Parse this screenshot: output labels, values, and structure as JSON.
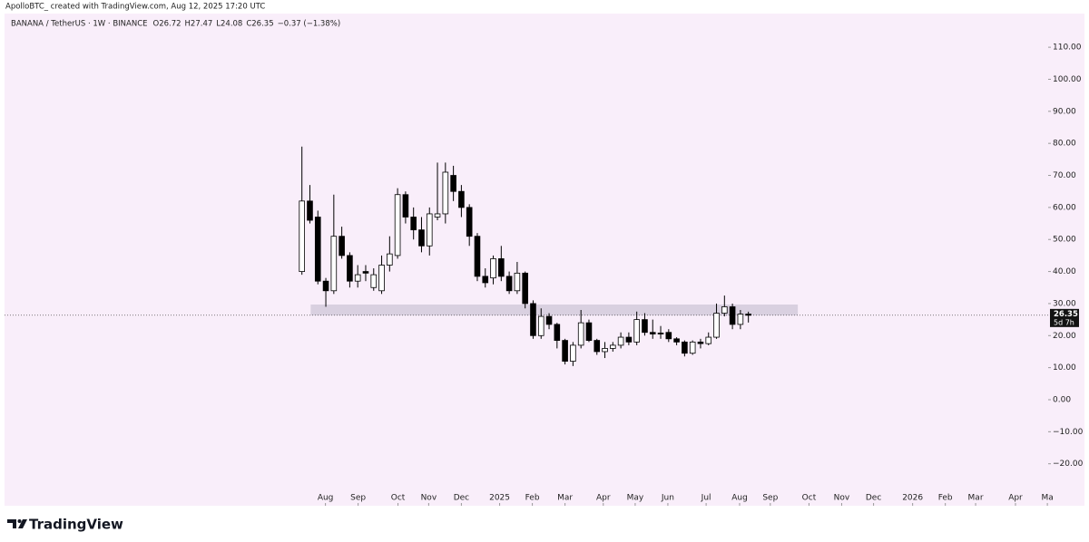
{
  "chart_data": {
    "type": "candlestick",
    "credit": "ApolloBTC_ created with TradingView.com, Aug 12, 2025 17:20 UTC",
    "symbol": "BANANA / TetherUS · 1W · BINANCE",
    "ohlc_header": [
      "O26.72",
      "H27.47",
      "L24.08",
      "C26.35",
      "−0.37 (−1.38%)"
    ],
    "open": [
      40,
      62,
      57,
      37,
      34,
      51,
      45,
      37,
      40,
      35,
      34,
      42,
      45,
      64,
      57,
      53,
      48,
      57,
      58,
      70,
      65,
      60,
      51,
      38.5,
      38,
      44,
      38.5,
      34,
      39.5,
      30,
      20,
      26,
      23.5,
      18.5,
      12,
      17,
      24,
      18.5,
      15,
      16,
      17,
      19.5,
      18,
      25,
      21,
      20.8,
      21,
      19,
      18,
      14.5,
      18,
      17.5,
      19.5,
      27,
      29,
      23.5,
      26.72
    ],
    "high": [
      79,
      67,
      59,
      38,
      64,
      54,
      46,
      42,
      42,
      41,
      45,
      51,
      66,
      65,
      60,
      57,
      60,
      74,
      74,
      73,
      67,
      61,
      52,
      41,
      45,
      48,
      40,
      43,
      40,
      31,
      28.5,
      27,
      24,
      19,
      18,
      28,
      25,
      19,
      18,
      18,
      21,
      21,
      27.5,
      27,
      25,
      23,
      22,
      19.5,
      18.5,
      18.5,
      19,
      21,
      30,
      32.5,
      30,
      28,
      27.47
    ],
    "low": [
      39,
      55,
      36,
      29,
      33,
      44,
      35,
      35,
      37,
      34,
      33,
      40,
      44,
      55,
      50,
      46,
      45,
      56,
      55,
      62,
      57,
      48,
      37,
      35,
      36,
      37,
      33,
      33,
      28.5,
      19,
      19,
      22,
      16,
      11,
      10.5,
      16,
      18,
      14,
      13,
      15,
      16,
      17,
      17,
      20,
      19,
      19,
      18,
      17,
      13.5,
      14,
      16,
      17,
      19,
      26,
      22,
      22,
      24.08
    ],
    "close": [
      62,
      56,
      37,
      34,
      51,
      45,
      37,
      39,
      39.5,
      39,
      42,
      45.5,
      64,
      57,
      53,
      48,
      58,
      58,
      71,
      65,
      60,
      51,
      38.5,
      36.5,
      44,
      38.5,
      34,
      39.5,
      30,
      20,
      26,
      23.5,
      18.5,
      12,
      17,
      24,
      18.5,
      15,
      16,
      17,
      19.5,
      18,
      25,
      21,
      20.5,
      20.5,
      19,
      18,
      14.5,
      18,
      17.5,
      19.5,
      27,
      29,
      23.5,
      26.7,
      26.35
    ],
    "up_color": "#ffffff",
    "down_color": "#000000",
    "border_color": "#000000",
    "ylim": [
      -33.1,
      120.5
    ],
    "yticks": [
      {
        "value": -20,
        "label": "−20.00"
      },
      {
        "value": -10,
        "label": "−10.00"
      },
      {
        "value": 0,
        "label": "0.00"
      },
      {
        "value": 10,
        "label": "10.00"
      },
      {
        "value": 20,
        "label": "20.00"
      },
      {
        "value": 30,
        "label": "30.00"
      },
      {
        "value": 40,
        "label": "40.00"
      },
      {
        "value": 50,
        "label": "50.00"
      },
      {
        "value": 60,
        "label": "60.00"
      },
      {
        "value": 70,
        "label": "70.00"
      },
      {
        "value": 80,
        "label": "80.00"
      },
      {
        "value": 90,
        "label": "90.00"
      },
      {
        "value": 100,
        "label": "100.00"
      },
      {
        "value": 110,
        "label": "110.00"
      }
    ],
    "xlim": [
      -37.3,
      93.6
    ],
    "xticks": [
      {
        "value": 2.95,
        "label": "Aug"
      },
      {
        "value": 7.05,
        "label": "Sep"
      },
      {
        "value": 12.05,
        "label": "Oct"
      },
      {
        "value": 15.9,
        "label": "Nov"
      },
      {
        "value": 20,
        "label": "Dec"
      },
      {
        "value": 24.8,
        "label": "2025"
      },
      {
        "value": 28.9,
        "label": "Feb"
      },
      {
        "value": 33,
        "label": "Mar"
      },
      {
        "value": 37.8,
        "label": "Apr"
      },
      {
        "value": 41.8,
        "label": "May"
      },
      {
        "value": 45.9,
        "label": "Jun"
      },
      {
        "value": 50.7,
        "label": "Jul"
      },
      {
        "value": 54.9,
        "label": "Aug"
      },
      {
        "value": 58.75,
        "label": "Sep"
      },
      {
        "value": 63.6,
        "label": "Oct"
      },
      {
        "value": 67.7,
        "label": "Nov"
      },
      {
        "value": 71.7,
        "label": "Dec"
      },
      {
        "value": 76.6,
        "label": "2026"
      },
      {
        "value": 80.7,
        "label": "Feb"
      },
      {
        "value": 84.5,
        "label": "Mar"
      },
      {
        "value": 89.5,
        "label": "Apr"
      },
      {
        "value": 93.5,
        "label": "Ma"
      }
    ],
    "zone": {
      "x": [
        1.1,
        62.2
      ],
      "y": [
        26.3,
        29.7
      ],
      "color": "#d9d0e0"
    },
    "last_price": 26.35,
    "countdown": "5d 7h",
    "background": "#f9eefa",
    "footer_logo": "TradingView"
  }
}
